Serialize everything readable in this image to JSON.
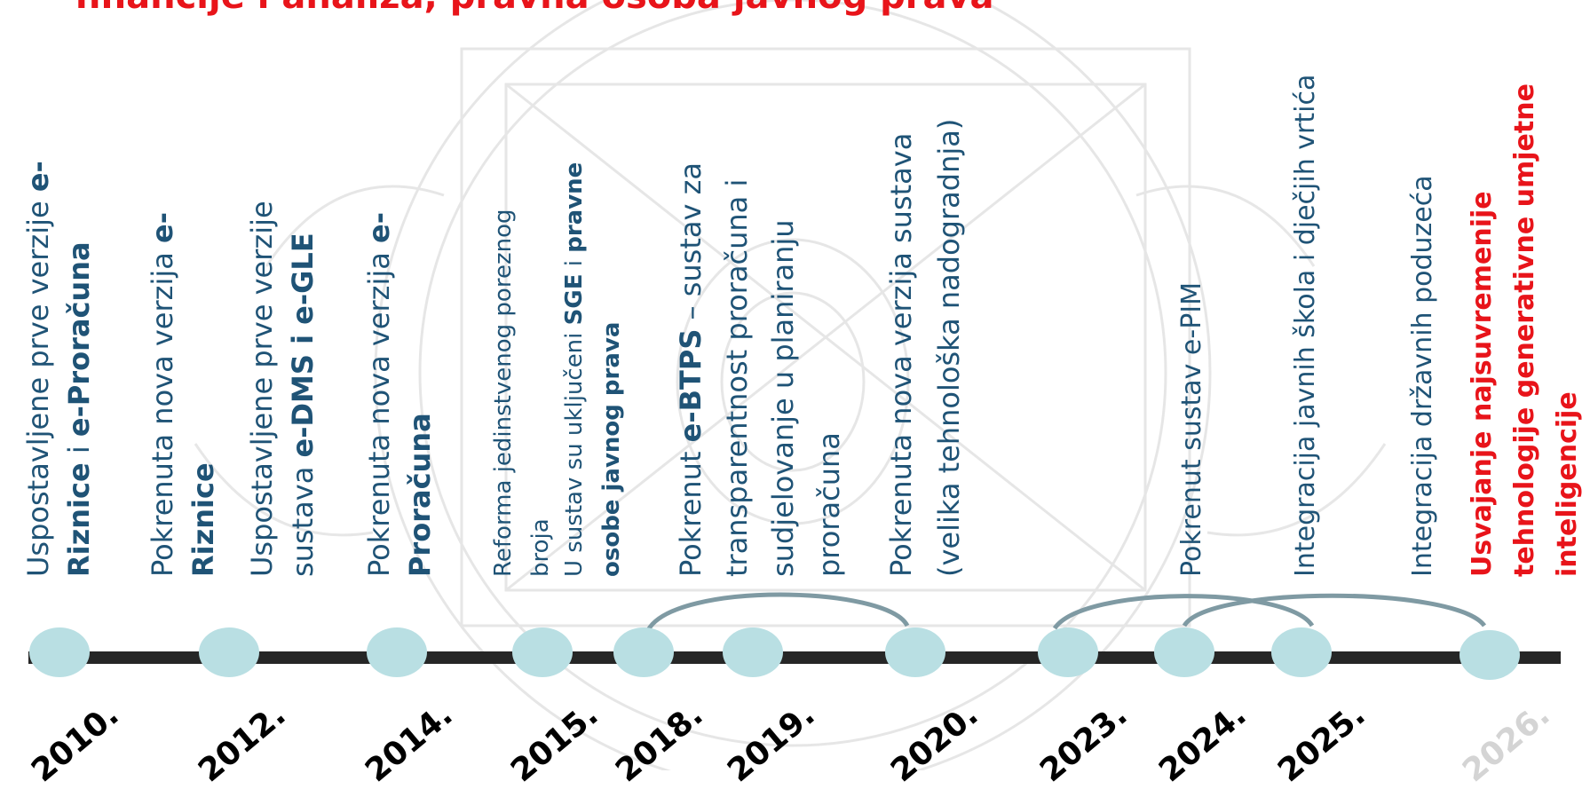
{
  "title": "financije i analiza, pravna osoba javnog prava",
  "milestones": [
    {
      "year": "2010.",
      "faded": false
    },
    {
      "year": "2012.",
      "faded": false
    },
    {
      "year": "2014.",
      "faded": false
    },
    {
      "year": "2015.",
      "faded": false
    },
    {
      "year": "2018.",
      "faded": false
    },
    {
      "year": "2019.",
      "faded": false
    },
    {
      "year": "2020.",
      "faded": false
    },
    {
      "year": "2023.",
      "faded": false
    },
    {
      "year": "2024.",
      "faded": false
    },
    {
      "year": "2025.",
      "faded": false
    },
    {
      "year": "2026.",
      "faded": true
    }
  ],
  "texts": {
    "t2010": {
      "l1a": "Uspostavljene prve verzije ",
      "l1b": "e-",
      "l2a": "Riznice",
      "l2b": " i ",
      "l2c": "e-Proračuna"
    },
    "t2012a": {
      "l1a": "Pokrenuta nova verzija ",
      "l1b": "e-",
      "l2a": "Riznice"
    },
    "t2012b": {
      "l1a": "Uspostavljene prve verzije",
      "l2a": "sustava ",
      "l2b": "e-DMS i e-GLE"
    },
    "t2014": {
      "l1a": "Pokrenuta nova verzija ",
      "l1b": "e-",
      "l2a": "Proračuna"
    },
    "t2015": {
      "l1": "Reforma jedinstvenog poreznog",
      "l2": "broja",
      "l3a": "U sustav su uključeni ",
      "l3b": "SGE",
      "l3c": " i ",
      "l3d": "pravne",
      "l4": "osobe javnog prava"
    },
    "t2018": {
      "l1a": "Pokrenut ",
      "l1b": "e-BTPS",
      "l1c": " – sustav za",
      "l2": "transparentnost proračuna i",
      "l3": "sudjelovanje u planiranju",
      "l4": "proračuna"
    },
    "t2020": {
      "l1": "Pokrenuta nova verzija sustava",
      "l2": "(velika tehnološka nadogradnja)"
    },
    "t2023": {
      "l1": "Pokrenut sustav e-PIM"
    },
    "t2024": {
      "l1": "Integracija javnih škola i dječjih vrtića"
    },
    "t2025": {
      "l1": "Integracija državnih poduzeća"
    },
    "t2026": {
      "l1": "Usvajanje najsuvremenije",
      "l2": "tehnologije generativne umjetne",
      "l3": "inteligencije"
    }
  },
  "colors": {
    "title": "#e8141a",
    "text": "#1f5376",
    "highlight": "#e8141a",
    "timeline": "#262626",
    "dot": "#b9dfe3",
    "arc": "#7f9aa3",
    "watermark": "#d6d6d6"
  }
}
